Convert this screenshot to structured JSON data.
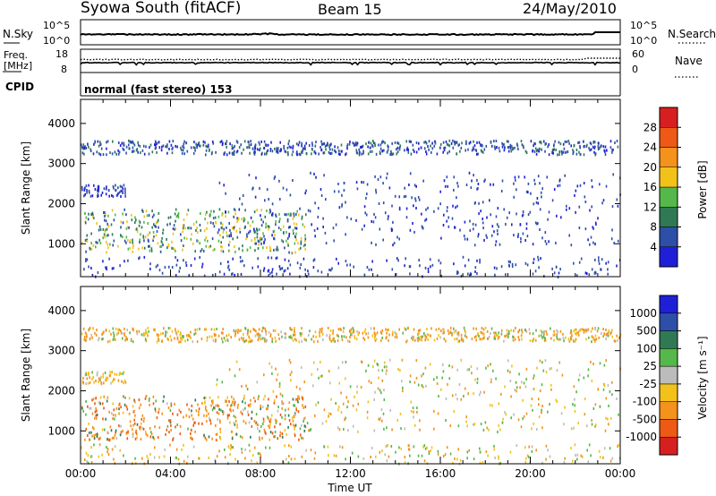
{
  "header": {
    "site": "Syowa South (fitACF)",
    "beam": "Beam 15",
    "date": "24/May/2010"
  },
  "panels": {
    "nsky": {
      "left_label": "N.Sky",
      "right_label": "N.Search",
      "ticks": [
        "10^5",
        "10^0"
      ]
    },
    "freq": {
      "left_label_1": "Freq.",
      "left_label_2": "[MHz]",
      "right_label": "Nave",
      "left_ticks": [
        "18",
        "8"
      ],
      "right_ticks": [
        "60",
        "0"
      ]
    },
    "cpid": {
      "label": "CPID",
      "text": "normal (fast stereo) 153"
    }
  },
  "colors": {
    "power": [
      "#1f1fd8",
      "#2e4fa8",
      "#2f7a55",
      "#55b84a",
      "#f2c21a",
      "#f5921b",
      "#ee5a16",
      "#d81f1f"
    ],
    "velocity": [
      "#d81f1f",
      "#ee5a16",
      "#f5921b",
      "#f2c21a",
      "#bcbcbc",
      "#55b84a",
      "#2f7a55",
      "#2e4fa8",
      "#1f1fd8"
    ]
  },
  "chart_data": [
    {
      "type": "heatmap",
      "name": "power",
      "ylabel": "Slant Range [km]",
      "xlabel": "Time UT",
      "x_ticks": [
        "00:00",
        "04:00",
        "08:00",
        "12:00",
        "16:00",
        "20:00",
        "00:00"
      ],
      "x_range_hours": [
        0,
        24
      ],
      "y_ticks": [
        1000,
        2000,
        3000,
        4000
      ],
      "y_range_km": [
        180,
        4600
      ],
      "colorbar": {
        "label": "Power [dB]",
        "ticks": [
          "4",
          "8",
          "12",
          "16",
          "20",
          "24",
          "28"
        ],
        "range": [
          0,
          32
        ]
      },
      "echo_bands": [
        {
          "t0": 0,
          "t1": 24,
          "r0": 3250,
          "r1": 3600,
          "density": 0.45,
          "value_min": 2,
          "value_max": 10
        },
        {
          "t0": 0,
          "t1": 10,
          "r0": 800,
          "r1": 1900,
          "density": 0.7,
          "value_min": 4,
          "value_max": 20
        },
        {
          "t0": 6,
          "t1": 24,
          "r0": 1000,
          "r1": 2800,
          "density": 0.35,
          "value_min": 2,
          "value_max": 8
        },
        {
          "t0": 0,
          "t1": 2,
          "r0": 2200,
          "r1": 2500,
          "density": 0.5,
          "value_min": 2,
          "value_max": 8
        },
        {
          "t0": 0,
          "t1": 24,
          "r0": 200,
          "r1": 700,
          "density": 0.15,
          "value_min": 2,
          "value_max": 8
        }
      ]
    },
    {
      "type": "heatmap",
      "name": "velocity",
      "ylabel": "Slant Range [km]",
      "xlabel": "Time UT",
      "x_ticks": [
        "00:00",
        "04:00",
        "08:00",
        "12:00",
        "16:00",
        "20:00",
        "00:00"
      ],
      "x_range_hours": [
        0,
        24
      ],
      "y_ticks": [
        1000,
        2000,
        3000,
        4000
      ],
      "y_range_km": [
        180,
        4600
      ],
      "colorbar": {
        "label": "Velocity [m s⁻¹]",
        "ticks": [
          "-1000",
          "-500",
          "-100",
          "-25",
          "25",
          "100",
          "500",
          "1000"
        ],
        "range": [
          -1500,
          1500
        ]
      },
      "echo_bands": [
        {
          "t0": 0,
          "t1": 24,
          "r0": 3250,
          "r1": 3600,
          "density": 0.45,
          "value_min": -300,
          "value_max": 100
        },
        {
          "t0": 0,
          "t1": 10,
          "r0": 800,
          "r1": 1900,
          "density": 0.7,
          "value_min": -800,
          "value_max": 200
        },
        {
          "t0": 6,
          "t1": 24,
          "r0": 1000,
          "r1": 2800,
          "density": 0.35,
          "value_min": -200,
          "value_max": 100
        },
        {
          "t0": 0,
          "t1": 2,
          "r0": 2200,
          "r1": 2500,
          "density": 0.5,
          "value_min": -200,
          "value_max": 50
        },
        {
          "t0": 0,
          "t1": 24,
          "r0": 200,
          "r1": 700,
          "density": 0.15,
          "value_min": -200,
          "value_max": 100
        }
      ]
    }
  ]
}
